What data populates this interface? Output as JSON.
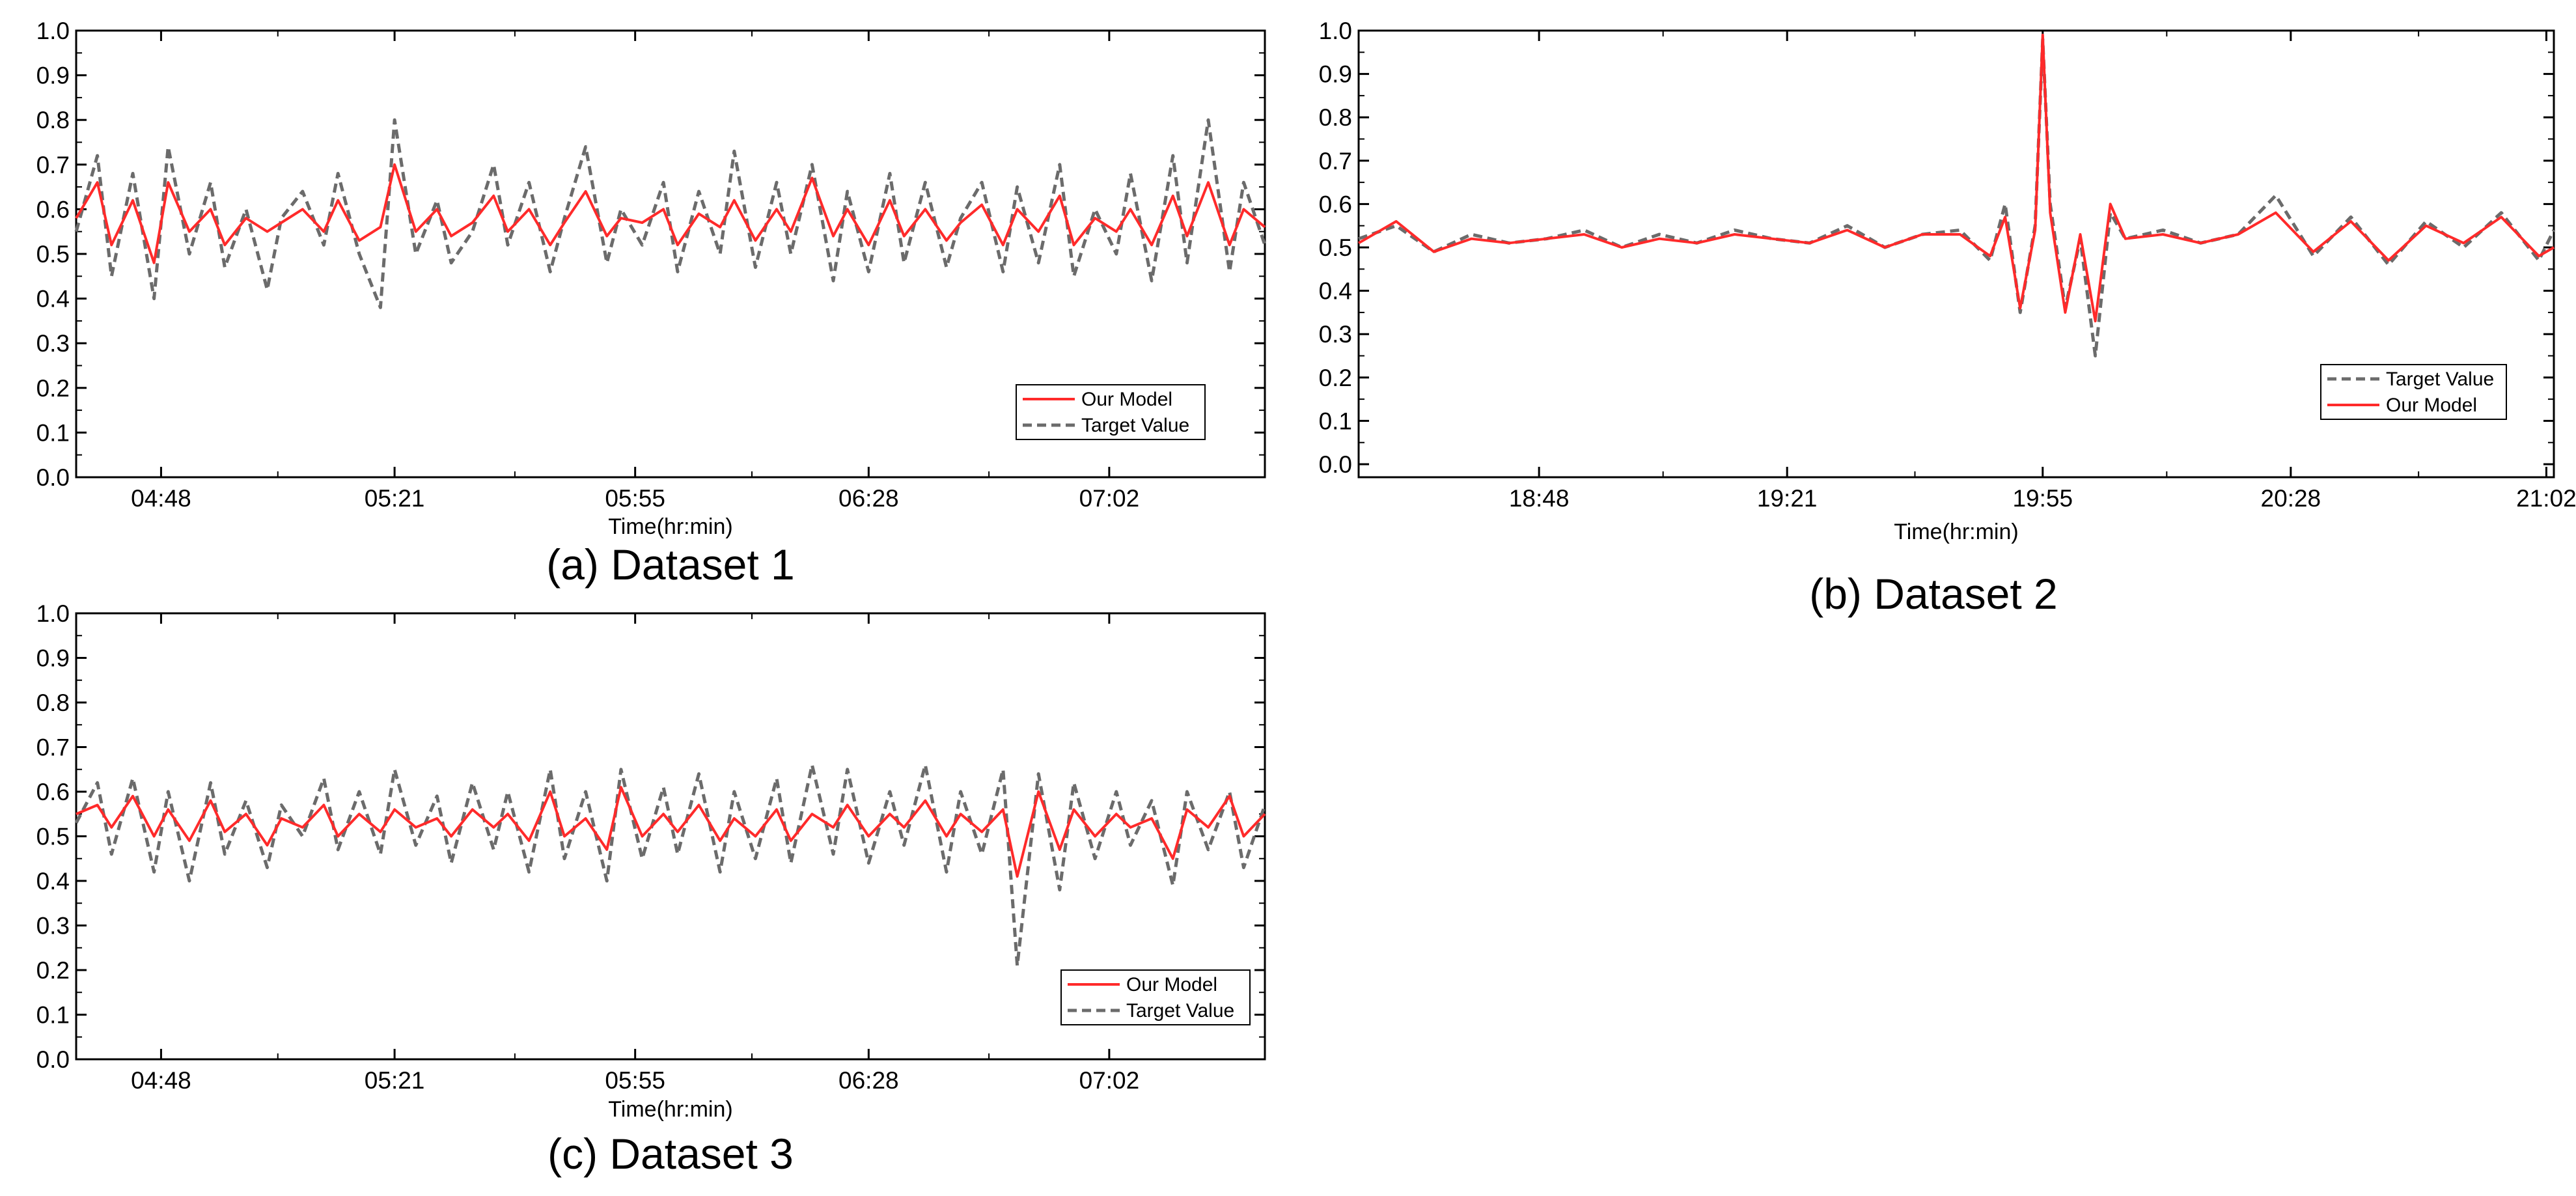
{
  "colors": {
    "model": "#ff2a2a",
    "target": "#6b6b6b",
    "axis": "#000000",
    "background": "#ffffff"
  },
  "panels": [
    {
      "caption": "(a) Dataset 1",
      "xlabel": "Time(hr:min)",
      "xticks": [
        "04:48",
        "05:21",
        "05:55",
        "06:28",
        "07:02"
      ],
      "yticks": [
        "0.0",
        "0.1",
        "0.2",
        "0.3",
        "0.4",
        "0.5",
        "0.6",
        "0.7",
        "0.8",
        "0.9",
        "1.0"
      ],
      "legend": [
        "Our Model",
        "Target Value"
      ]
    },
    {
      "caption": "(b) Dataset 2",
      "xlabel": "Time(hr:min)",
      "xticks": [
        "18:48",
        "19:21",
        "19:55",
        "20:28",
        "21:02"
      ],
      "yticks": [
        "0.0",
        "0.1",
        "0.2",
        "0.3",
        "0.4",
        "0.5",
        "0.6",
        "0.7",
        "0.8",
        "0.9",
        "1.0"
      ],
      "legend": [
        "Target Value",
        "Our Model"
      ]
    },
    {
      "caption": "(c) Dataset 3",
      "xlabel": "Time(hr:min)",
      "xticks": [
        "04:48",
        "05:21",
        "05:55",
        "06:28",
        "07:02"
      ],
      "yticks": [
        "0.0",
        "0.1",
        "0.2",
        "0.3",
        "0.4",
        "0.5",
        "0.6",
        "0.7",
        "0.8",
        "0.9",
        "1.0"
      ],
      "legend": [
        "Our Model",
        "Target Value"
      ]
    }
  ],
  "chart_data": [
    {
      "type": "line",
      "title": "(a) Dataset 1",
      "xlabel": "Time(hr:min)",
      "ylabel": "",
      "ylim": [
        0,
        1
      ],
      "xlim": [
        "04:36",
        "07:24"
      ],
      "x_ticks": [
        "04:48",
        "05:21",
        "05:55",
        "06:28",
        "07:02"
      ],
      "y_ticks": [
        0,
        0.1,
        0.2,
        0.3,
        0.4,
        0.5,
        0.6,
        0.7,
        0.8,
        0.9,
        1.0
      ],
      "grid": false,
      "legend_position": "bottom-right",
      "x": [
        "04:36",
        "04:39",
        "04:41",
        "04:44",
        "04:47",
        "04:49",
        "04:52",
        "04:55",
        "04:57",
        "05:00",
        "05:03",
        "05:05",
        "05:08",
        "05:11",
        "05:13",
        "05:16",
        "05:19",
        "05:21",
        "05:24",
        "05:27",
        "05:29",
        "05:32",
        "05:35",
        "05:37",
        "05:40",
        "05:43",
        "05:45",
        "05:48",
        "05:51",
        "05:53",
        "05:56",
        "05:59",
        "06:01",
        "06:04",
        "06:07",
        "06:09",
        "06:12",
        "06:15",
        "06:17",
        "06:20",
        "06:23",
        "06:25",
        "06:28",
        "06:31",
        "06:33",
        "06:36",
        "06:39",
        "06:41",
        "06:44",
        "06:47",
        "06:49",
        "06:52",
        "06:55",
        "06:57",
        "07:00",
        "07:03",
        "07:05",
        "07:08",
        "07:11",
        "07:13",
        "07:16",
        "07:19",
        "07:21",
        "07:24"
      ],
      "series": [
        {
          "name": "Our Model",
          "values": [
            0.58,
            0.66,
            0.52,
            0.62,
            0.48,
            0.66,
            0.55,
            0.6,
            0.52,
            0.58,
            0.55,
            0.57,
            0.6,
            0.55,
            0.62,
            0.53,
            0.56,
            0.7,
            0.55,
            0.6,
            0.54,
            0.57,
            0.63,
            0.55,
            0.6,
            0.52,
            0.57,
            0.64,
            0.54,
            0.58,
            0.57,
            0.6,
            0.52,
            0.59,
            0.56,
            0.62,
            0.53,
            0.6,
            0.55,
            0.67,
            0.54,
            0.6,
            0.52,
            0.62,
            0.54,
            0.6,
            0.53,
            0.57,
            0.61,
            0.52,
            0.6,
            0.55,
            0.63,
            0.52,
            0.58,
            0.55,
            0.6,
            0.52,
            0.63,
            0.54,
            0.66,
            0.52,
            0.6,
            0.56
          ]
        },
        {
          "name": "Target Value",
          "values": [
            0.55,
            0.72,
            0.45,
            0.68,
            0.4,
            0.74,
            0.5,
            0.66,
            0.47,
            0.6,
            0.42,
            0.58,
            0.64,
            0.52,
            0.68,
            0.5,
            0.38,
            0.8,
            0.5,
            0.62,
            0.48,
            0.55,
            0.7,
            0.52,
            0.66,
            0.46,
            0.58,
            0.74,
            0.48,
            0.6,
            0.52,
            0.66,
            0.46,
            0.64,
            0.5,
            0.73,
            0.47,
            0.66,
            0.5,
            0.7,
            0.44,
            0.64,
            0.46,
            0.68,
            0.48,
            0.66,
            0.47,
            0.58,
            0.66,
            0.46,
            0.65,
            0.48,
            0.7,
            0.45,
            0.6,
            0.5,
            0.68,
            0.44,
            0.72,
            0.48,
            0.8,
            0.46,
            0.66,
            0.52
          ]
        }
      ]
    },
    {
      "type": "line",
      "title": "(b) Dataset 2",
      "xlabel": "Time(hr:min)",
      "ylabel": "",
      "ylim": [
        -0.03,
        1.0
      ],
      "xlim": [
        "18:24",
        "21:03"
      ],
      "x_ticks": [
        "18:48",
        "19:21",
        "19:55",
        "20:28",
        "21:02"
      ],
      "y_ticks": [
        0,
        0.1,
        0.2,
        0.3,
        0.4,
        0.5,
        0.6,
        0.7,
        0.8,
        0.9,
        1.0
      ],
      "grid": false,
      "legend_position": "bottom-right",
      "x": [
        "18:24",
        "18:29",
        "18:34",
        "18:39",
        "18:44",
        "18:49",
        "18:54",
        "18:59",
        "19:04",
        "19:09",
        "19:14",
        "19:19",
        "19:24",
        "19:29",
        "19:34",
        "19:39",
        "19:44",
        "19:48",
        "19:50",
        "19:52",
        "19:54",
        "19:55",
        "19:56",
        "19:58",
        "20:00",
        "20:02",
        "20:04",
        "20:06",
        "20:11",
        "20:16",
        "20:21",
        "20:26",
        "20:31",
        "20:36",
        "20:41",
        "20:46",
        "20:51",
        "20:56",
        "21:01",
        "21:03"
      ],
      "series": [
        {
          "name": "Target Value",
          "values": [
            0.52,
            0.55,
            0.49,
            0.53,
            0.51,
            0.52,
            0.54,
            0.5,
            0.53,
            0.51,
            0.54,
            0.52,
            0.51,
            0.55,
            0.5,
            0.53,
            0.54,
            0.47,
            0.6,
            0.35,
            0.55,
            0.98,
            0.6,
            0.36,
            0.52,
            0.25,
            0.58,
            0.52,
            0.54,
            0.51,
            0.53,
            0.62,
            0.48,
            0.57,
            0.46,
            0.56,
            0.5,
            0.58,
            0.47,
            0.54
          ]
        },
        {
          "name": "Our Model",
          "values": [
            0.51,
            0.56,
            0.49,
            0.52,
            0.51,
            0.52,
            0.53,
            0.5,
            0.52,
            0.51,
            0.53,
            0.52,
            0.51,
            0.54,
            0.5,
            0.53,
            0.53,
            0.48,
            0.57,
            0.36,
            0.54,
            0.99,
            0.58,
            0.35,
            0.53,
            0.33,
            0.6,
            0.52,
            0.53,
            0.51,
            0.53,
            0.58,
            0.49,
            0.56,
            0.47,
            0.55,
            0.51,
            0.57,
            0.48,
            0.5
          ]
        }
      ]
    },
    {
      "type": "line",
      "title": "(c) Dataset 3",
      "xlabel": "Time(hr:min)",
      "ylabel": "",
      "ylim": [
        0,
        1
      ],
      "xlim": [
        "04:36",
        "07:24"
      ],
      "x_ticks": [
        "04:48",
        "05:21",
        "05:55",
        "06:28",
        "07:02"
      ],
      "y_ticks": [
        0,
        0.1,
        0.2,
        0.3,
        0.4,
        0.5,
        0.6,
        0.7,
        0.8,
        0.9,
        1.0
      ],
      "grid": false,
      "legend_position": "bottom-right",
      "x": [
        "04:36",
        "04:39",
        "04:41",
        "04:44",
        "04:47",
        "04:49",
        "04:52",
        "04:55",
        "04:57",
        "05:00",
        "05:03",
        "05:05",
        "05:08",
        "05:11",
        "05:13",
        "05:16",
        "05:19",
        "05:21",
        "05:24",
        "05:27",
        "05:29",
        "05:32",
        "05:35",
        "05:37",
        "05:40",
        "05:43",
        "05:45",
        "05:48",
        "05:51",
        "05:53",
        "05:56",
        "05:59",
        "06:01",
        "06:04",
        "06:07",
        "06:09",
        "06:12",
        "06:15",
        "06:17",
        "06:20",
        "06:23",
        "06:25",
        "06:28",
        "06:31",
        "06:33",
        "06:36",
        "06:39",
        "06:41",
        "06:44",
        "06:47",
        "06:49",
        "06:52",
        "06:55",
        "06:57",
        "07:00",
        "07:03",
        "07:05",
        "07:08",
        "07:11",
        "07:13",
        "07:16",
        "07:19",
        "07:21",
        "07:24"
      ],
      "series": [
        {
          "name": "Our Model",
          "values": [
            0.55,
            0.57,
            0.52,
            0.59,
            0.5,
            0.56,
            0.49,
            0.58,
            0.51,
            0.55,
            0.48,
            0.54,
            0.52,
            0.57,
            0.5,
            0.55,
            0.51,
            0.56,
            0.52,
            0.54,
            0.5,
            0.56,
            0.52,
            0.55,
            0.49,
            0.6,
            0.5,
            0.54,
            0.47,
            0.61,
            0.5,
            0.55,
            0.51,
            0.57,
            0.49,
            0.54,
            0.5,
            0.56,
            0.49,
            0.55,
            0.52,
            0.57,
            0.5,
            0.55,
            0.52,
            0.58,
            0.5,
            0.55,
            0.51,
            0.56,
            0.41,
            0.6,
            0.47,
            0.56,
            0.5,
            0.55,
            0.52,
            0.54,
            0.45,
            0.56,
            0.52,
            0.59,
            0.5,
            0.55
          ]
        },
        {
          "name": "Target Value",
          "values": [
            0.53,
            0.62,
            0.46,
            0.63,
            0.42,
            0.6,
            0.4,
            0.62,
            0.46,
            0.58,
            0.43,
            0.57,
            0.5,
            0.63,
            0.47,
            0.6,
            0.46,
            0.65,
            0.48,
            0.59,
            0.44,
            0.62,
            0.47,
            0.6,
            0.42,
            0.65,
            0.45,
            0.6,
            0.4,
            0.65,
            0.45,
            0.61,
            0.46,
            0.64,
            0.42,
            0.6,
            0.45,
            0.63,
            0.44,
            0.66,
            0.46,
            0.65,
            0.44,
            0.6,
            0.48,
            0.66,
            0.42,
            0.6,
            0.46,
            0.65,
            0.21,
            0.64,
            0.38,
            0.62,
            0.45,
            0.6,
            0.48,
            0.58,
            0.39,
            0.6,
            0.47,
            0.6,
            0.43,
            0.57
          ]
        }
      ]
    }
  ]
}
